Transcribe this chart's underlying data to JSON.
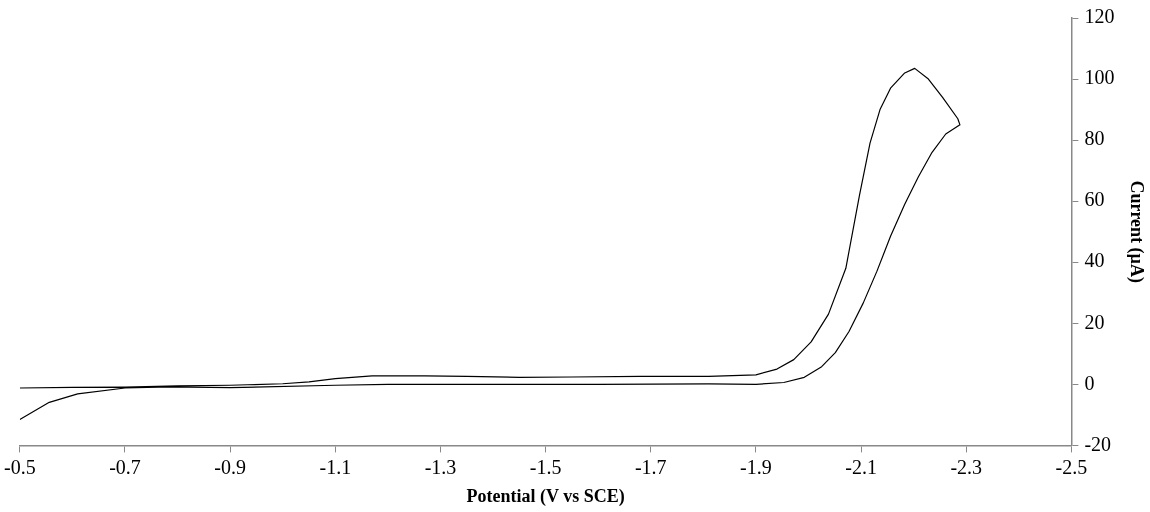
{
  "chart_data": {
    "type": "line",
    "xlabel": "Potential (V vs SCE)",
    "ylabel": "Current (µA)",
    "xlim": [
      -0.5,
      -2.5
    ],
    "xticks": [
      -0.5,
      -0.7,
      -0.9,
      -1.1,
      -1.3,
      -1.5,
      -1.7,
      -1.9,
      -2.1,
      -2.3,
      -2.5
    ],
    "ylim": [
      -20,
      120
    ],
    "yticks": [
      -20,
      0,
      20,
      40,
      60,
      80,
      100,
      120
    ],
    "grid": false,
    "legend": false,
    "marker": "none",
    "line_style": "solid",
    "series": [
      {
        "color": "#000000",
        "x": [
          -0.5,
          -0.6,
          -0.7,
          -0.8,
          -0.9,
          -1.0,
          -1.05,
          -1.1,
          -1.17,
          -1.27,
          -1.35,
          -1.45,
          -1.55,
          -1.68,
          -1.81,
          -1.9,
          -1.94,
          -1.972,
          -2.005,
          -2.038,
          -2.071,
          -2.097,
          -2.117,
          -2.136,
          -2.156,
          -2.183,
          -2.202,
          -2.228,
          -2.255,
          -2.284,
          -2.288,
          -2.261,
          -2.235,
          -2.209,
          -2.183,
          -2.156,
          -2.13,
          -2.104,
          -2.077,
          -2.051,
          -2.025,
          -1.992,
          -1.953,
          -1.9,
          -1.81,
          -1.6,
          -1.4,
          -1.2,
          -1.1,
          -0.9,
          -0.785,
          -0.7,
          -0.61,
          -0.556,
          -0.5
        ],
        "values": [
          -1.2,
          -1,
          -0.9,
          -0.5,
          -0.3,
          0.2,
          0.8,
          1.9,
          2.8,
          2.8,
          2.6,
          2.3,
          2.4,
          2.6,
          2.6,
          3.1,
          5,
          8.1,
          13.9,
          23,
          38,
          62,
          79,
          90,
          97,
          102,
          103.5,
          100,
          94,
          87,
          85,
          82,
          76,
          68,
          59,
          48.5,
          37,
          26.6,
          17.3,
          10.4,
          5.8,
          2.3,
          0.6,
          0,
          0.15,
          0,
          0,
          0,
          -0.3,
          -1.1,
          -0.8,
          -1.2,
          -3.1,
          -5.9,
          -11.5
        ]
      }
    ]
  }
}
